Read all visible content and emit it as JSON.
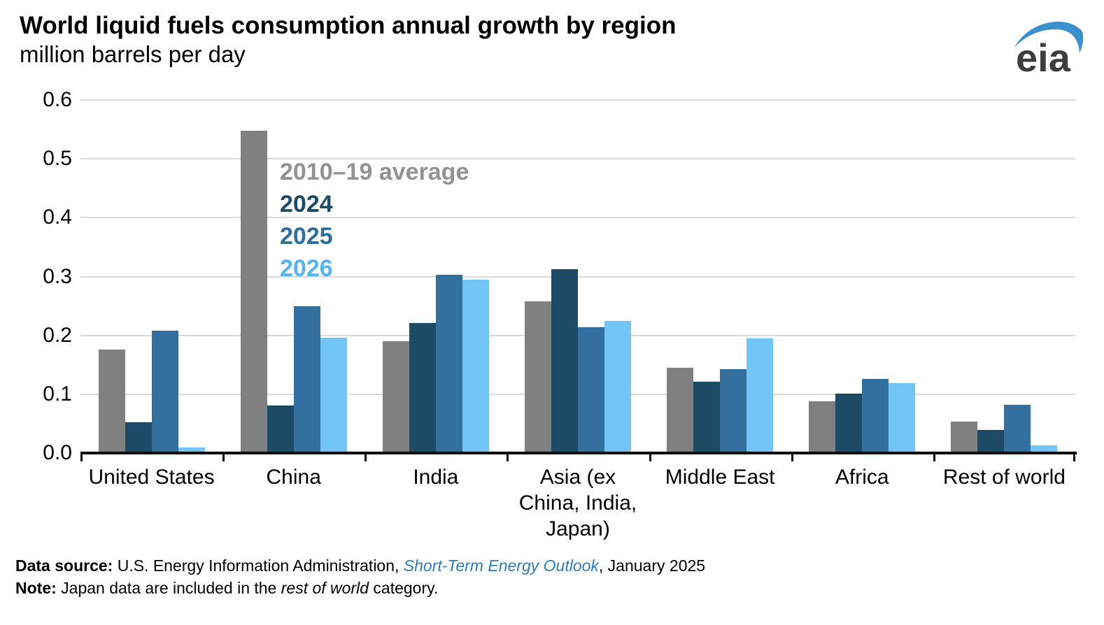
{
  "header": {
    "title": "World liquid fuels consumption annual growth by region",
    "subtitle": "million barrels per day"
  },
  "logo": {
    "text": "eia",
    "text_color": "#3d3d3d",
    "swoosh_color": "#3a8fcd"
  },
  "chart_data": {
    "type": "bar",
    "title": "World liquid fuels consumption annual growth by region",
    "ylabel": "million barrels per day",
    "ylim": [
      0,
      0.6
    ],
    "ytick_step": 0.1,
    "ytick_labels": [
      "0.0",
      "0.1",
      "0.2",
      "0.3",
      "0.4",
      "0.5",
      "0.6"
    ],
    "grid": "horizontal",
    "gridline_color": "#d9d9d9",
    "legend_position": "inside-plot-upper-left",
    "categories": [
      "United States",
      "China",
      "India",
      "Asia (ex\nChina, India,\nJapan)",
      "Middle East",
      "Africa",
      "Rest of world"
    ],
    "series": [
      {
        "name": "2010–19 average",
        "color": "#808080",
        "label_color": "#929292",
        "values": [
          0.176,
          0.548,
          0.19,
          0.258,
          0.145,
          0.088,
          0.054
        ]
      },
      {
        "name": "2024",
        "color": "#1D4B66",
        "label_color": "#1D4B66",
        "values": [
          0.052,
          0.081,
          0.221,
          0.312,
          0.121,
          0.101,
          0.039
        ]
      },
      {
        "name": "2025",
        "color": "#33709F",
        "label_color": "#2F6E9E",
        "values": [
          0.208,
          0.249,
          0.303,
          0.214,
          0.143,
          0.126,
          0.082
        ]
      },
      {
        "name": "2026",
        "color": "#74C5F7",
        "label_color": "#55B3EF",
        "values": [
          0.009,
          0.196,
          0.295,
          0.225,
          0.195,
          0.119,
          0.013
        ]
      }
    ]
  },
  "footer": {
    "source_label": "Data source: ",
    "source_text": "U.S. Energy Information Administration, ",
    "source_link": "Short-Term Energy Outlook",
    "source_suffix": ", January 2025",
    "link_color": "#2E7BBF",
    "note_label": "Note: ",
    "note_pre": "Japan data are included in the ",
    "note_italic": "rest of world",
    "note_post": " category."
  }
}
